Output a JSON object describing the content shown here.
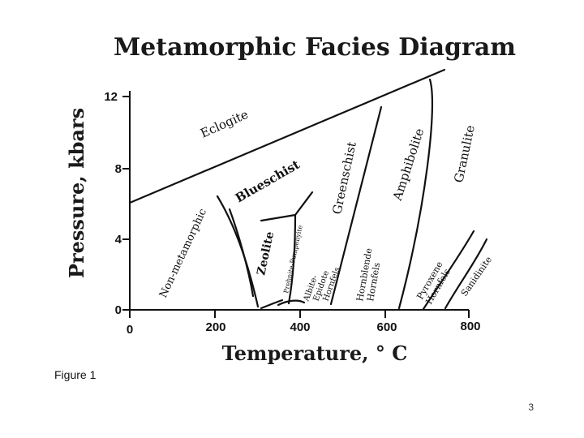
{
  "title": "Metamorphic Facies Diagram",
  "x_axis_title": "Temperature, ° C",
  "y_axis_title": "Pressure, kbars",
  "x_ticks": [
    "0",
    "200",
    "400",
    "600",
    "800"
  ],
  "y_ticks": [
    "0",
    "4",
    "8",
    "12"
  ],
  "facies": {
    "eclogite": "Eclogite",
    "blueschist": "Blueschist",
    "non_metamorphic": "Non-metamorphic",
    "zeolite": "Zeolite",
    "prehnite_pumpellyite": "Prehnite-Pumpellyite",
    "albite_epidote_hornfels": [
      "Albite-",
      "Epidote",
      "Hornfels"
    ],
    "hornblende_hornfels": [
      "Hornblende",
      "Hornfels"
    ],
    "greenschist": "Greenschist",
    "amphibolite": "Amphibolite",
    "pyroxene_hornfels": [
      "Pyroxene",
      "Hornfels"
    ],
    "granulite": "Granulite",
    "sanidinite": "Sanidinite"
  },
  "figure_label": "Figure 1",
  "page_number": "3"
}
